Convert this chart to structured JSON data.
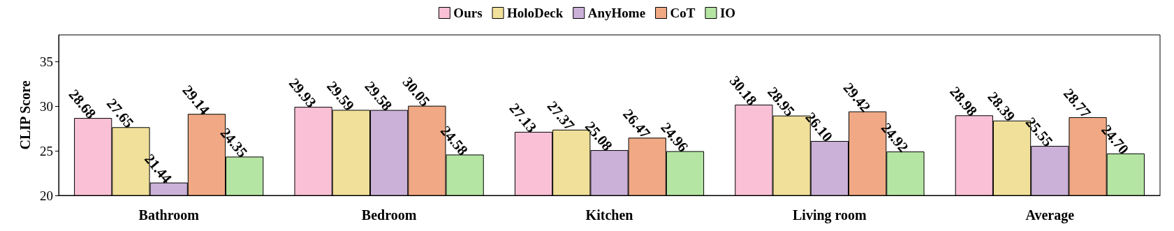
{
  "chart_data": {
    "type": "bar",
    "ylabel": "CLIP Score",
    "categories": [
      "Bathroom",
      "Bedroom",
      "Kitchen",
      "Living room",
      "Average"
    ],
    "series": [
      {
        "name": "Ours",
        "color": "#f9c0d6",
        "values": [
          28.68,
          29.93,
          27.13,
          30.18,
          28.98
        ],
        "value_labels": [
          "28.68",
          "29.93",
          "27.13",
          "30.18",
          "28.98"
        ]
      },
      {
        "name": "HoloDeck",
        "color": "#f1e09a",
        "values": [
          27.65,
          29.59,
          27.37,
          28.95,
          28.39
        ],
        "value_labels": [
          "27.65",
          "29.59",
          "27.37",
          "28.95",
          "28.39"
        ]
      },
      {
        "name": "AnyHome",
        "color": "#cbb1d8",
        "values": [
          21.44,
          29.58,
          25.08,
          26.1,
          25.55
        ],
        "value_labels": [
          "21.44",
          "29.58",
          "25.08",
          "26.10",
          "25.55"
        ]
      },
      {
        "name": "CoT",
        "color": "#f0a984",
        "values": [
          29.14,
          30.05,
          26.47,
          29.42,
          28.77
        ],
        "value_labels": [
          "29.14",
          "30.05",
          "26.47",
          "29.42",
          "28.77"
        ]
      },
      {
        "name": "IO",
        "color": "#b5e5a3",
        "values": [
          24.35,
          24.58,
          24.96,
          24.92,
          24.7
        ],
        "value_labels": [
          "24.35",
          "24.58",
          "24.96",
          "24.92",
          "24.70"
        ]
      }
    ],
    "ylim": [
      20,
      38
    ],
    "yticks": [
      20,
      25,
      30,
      35
    ],
    "legend": "top"
  }
}
